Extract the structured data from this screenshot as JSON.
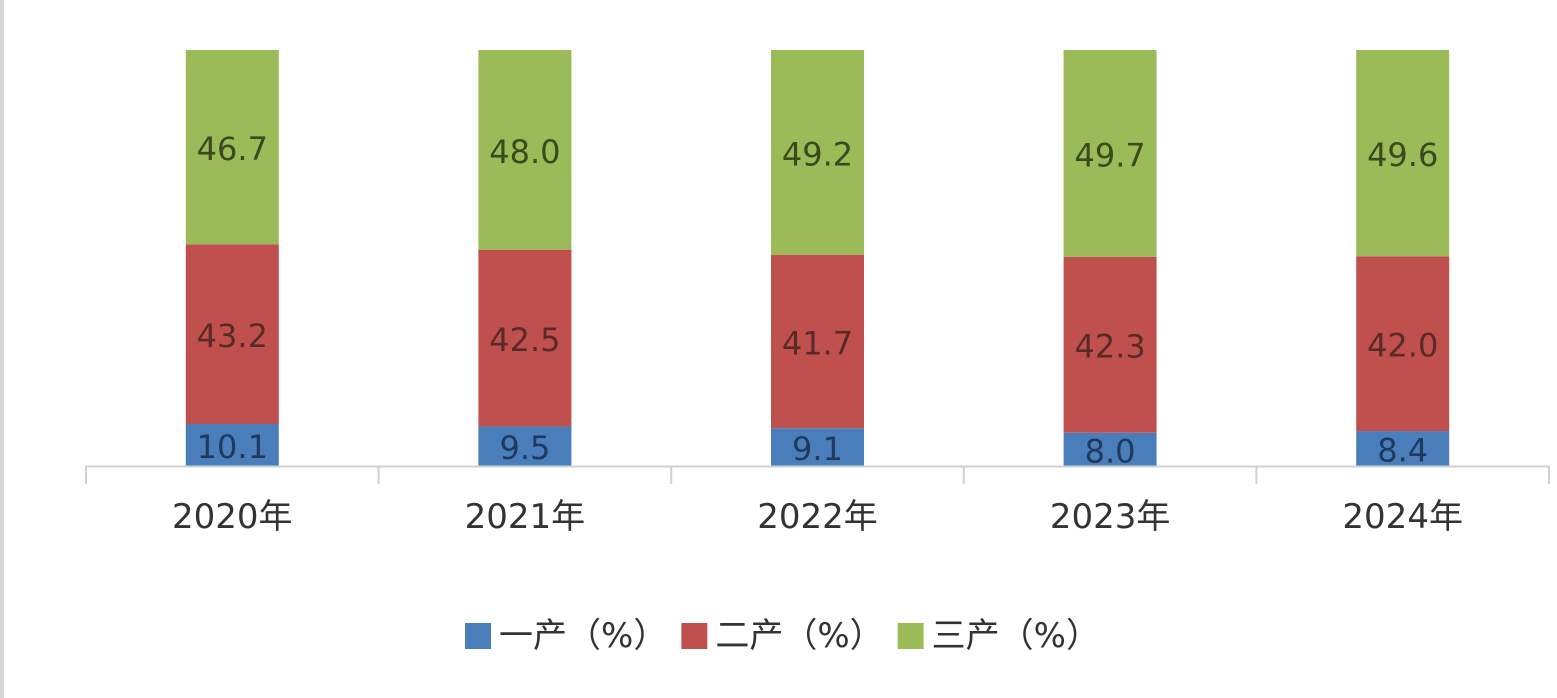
{
  "chart_data": {
    "type": "bar",
    "stacked": true,
    "title": "",
    "xlabel": "",
    "ylabel": "",
    "categories": [
      "2020年",
      "2021年",
      "2022年",
      "2023年",
      "2024年"
    ],
    "series": [
      {
        "name": "一产（%）",
        "color": "#4a7ebb",
        "values": [
          10.1,
          9.5,
          9.1,
          8.0,
          8.4
        ]
      },
      {
        "name": "二产（%）",
        "color": "#c0504d",
        "values": [
          43.2,
          42.5,
          41.7,
          42.3,
          42.0
        ]
      },
      {
        "name": "三产（%）",
        "color": "#9bbb59",
        "values": [
          46.7,
          48.0,
          49.2,
          49.7,
          49.6
        ]
      }
    ],
    "data_labels": [
      [
        "10.1",
        "9.5",
        "9.1",
        "8.0",
        "8.4"
      ],
      [
        "43.2",
        "42.5",
        "41.7",
        "42.3",
        "42.0"
      ],
      [
        "46.7",
        "48.0",
        "49.2",
        "49.7",
        "49.6"
      ]
    ],
    "ylim": [
      0,
      100
    ],
    "grid": false,
    "legend": "bottom"
  }
}
